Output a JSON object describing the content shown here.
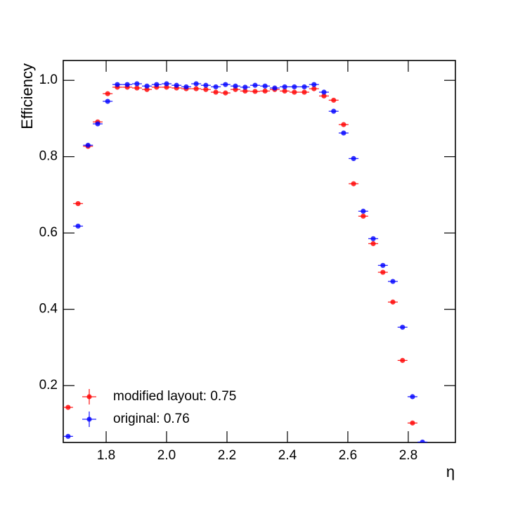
{
  "chart_data": {
    "type": "errorbar",
    "x_label": "η",
    "y_label": "Efficiency",
    "x": [
      1.674,
      1.707,
      1.74,
      1.772,
      1.805,
      1.837,
      1.87,
      1.902,
      1.935,
      1.967,
      2.0,
      2.033,
      2.065,
      2.098,
      2.13,
      2.163,
      2.195,
      2.228,
      2.26,
      2.293,
      2.326,
      2.358,
      2.391,
      2.423,
      2.456,
      2.488,
      2.521,
      2.553,
      2.586,
      2.619,
      2.651,
      2.684,
      2.716,
      2.749,
      2.781,
      2.814,
      2.847
    ],
    "xerr": 0.0163,
    "series": [
      {
        "name": "modified layout: 0.75",
        "color": "#ff0000",
        "values": [
          0.143,
          0.677,
          0.827,
          0.891,
          0.965,
          0.982,
          0.982,
          0.98,
          0.976,
          0.982,
          0.982,
          0.98,
          0.978,
          0.978,
          0.976,
          0.969,
          0.967,
          0.976,
          0.972,
          0.971,
          0.972,
          0.976,
          0.972,
          0.969,
          0.969,
          0.978,
          0.959,
          0.948,
          0.884,
          0.729,
          0.644,
          0.572,
          0.497,
          0.419,
          0.266,
          0.102,
          null
        ]
      },
      {
        "name": "original: 0.76",
        "color": "#0000ff",
        "values": [
          0.067,
          0.618,
          0.83,
          0.886,
          0.945,
          0.989,
          0.989,
          0.991,
          0.985,
          0.989,
          0.991,
          0.987,
          0.983,
          0.991,
          0.987,
          0.983,
          0.989,
          0.985,
          0.982,
          0.987,
          0.985,
          0.98,
          0.983,
          0.983,
          0.983,
          0.989,
          0.969,
          0.919,
          0.862,
          0.795,
          0.657,
          0.585,
          0.515,
          0.473,
          0.353,
          0.171,
          0.052
        ]
      }
    ],
    "xlim": [
      1.658,
      2.956
    ],
    "ylim": [
      0.051,
      1.052
    ],
    "xticks": [
      1.8,
      2.0,
      2.2,
      2.4,
      2.6,
      2.8
    ],
    "yticks": [
      0.2,
      0.4,
      0.6,
      0.8,
      1.0
    ],
    "legend": "lower-left"
  }
}
